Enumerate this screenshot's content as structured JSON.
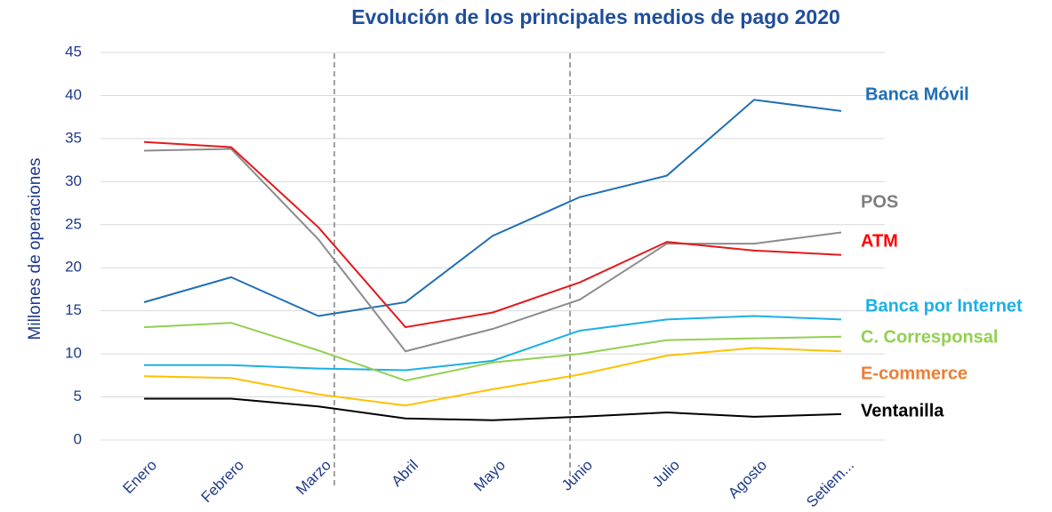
{
  "chart_data": {
    "type": "line",
    "title": "Evolución de los principales medios de pago 2020",
    "y_label": "Millones de operaciones",
    "categories": [
      "Enero",
      "Febrero",
      "Marzo",
      "Abril",
      "Mayo",
      "Junio",
      "Julio",
      "Agosto",
      "Setiem..."
    ],
    "series": [
      {
        "name": "Banca Móvil",
        "color": "#1f6fb5",
        "label_color": "#1f6fb5",
        "values": [
          16,
          18.9,
          14.4,
          16,
          23.7,
          28.2,
          30.7,
          39.5,
          38.2
        ]
      },
      {
        "name": "POS",
        "color": "#8c8c8c",
        "label_color": "#7f7f7f",
        "values": [
          33.6,
          33.8,
          23.3,
          10.3,
          12.9,
          16.3,
          22.8,
          22.8,
          24.1
        ]
      },
      {
        "name": "ATM",
        "color": "#e31a1c",
        "label_color": "#ff0000",
        "values": [
          34.6,
          34,
          24.7,
          13.1,
          14.8,
          18.3,
          23,
          22,
          21.5
        ]
      },
      {
        "name": "Banca por Internet",
        "color": "#1ab0e6",
        "label_color": "#1ab0e6",
        "values": [
          8.7,
          8.7,
          8.3,
          8.1,
          9.2,
          12.7,
          14,
          14.4,
          14
        ]
      },
      {
        "name": "C. Corresponsal",
        "color": "#92d050",
        "label_color": "#92d050",
        "values": [
          13.1,
          13.6,
          10.4,
          6.9,
          9,
          10,
          11.6,
          11.8,
          12
        ]
      },
      {
        "name": "E-commerce",
        "color": "#ffc000",
        "label_color": "#ed7d31",
        "values": [
          7.4,
          7.2,
          5.3,
          4,
          5.9,
          7.6,
          9.8,
          10.7,
          10.3
        ]
      },
      {
        "name": "Ventanilla",
        "color": "#000000",
        "label_color": "#000000",
        "values": [
          4.8,
          4.8,
          3.9,
          2.5,
          2.3,
          2.7,
          3.2,
          2.7,
          3
        ]
      }
    ],
    "ylim": [
      0,
      45
    ],
    "yticks": [
      0,
      5,
      10,
      15,
      20,
      25,
      30,
      35,
      40,
      45
    ],
    "grid": true
  }
}
